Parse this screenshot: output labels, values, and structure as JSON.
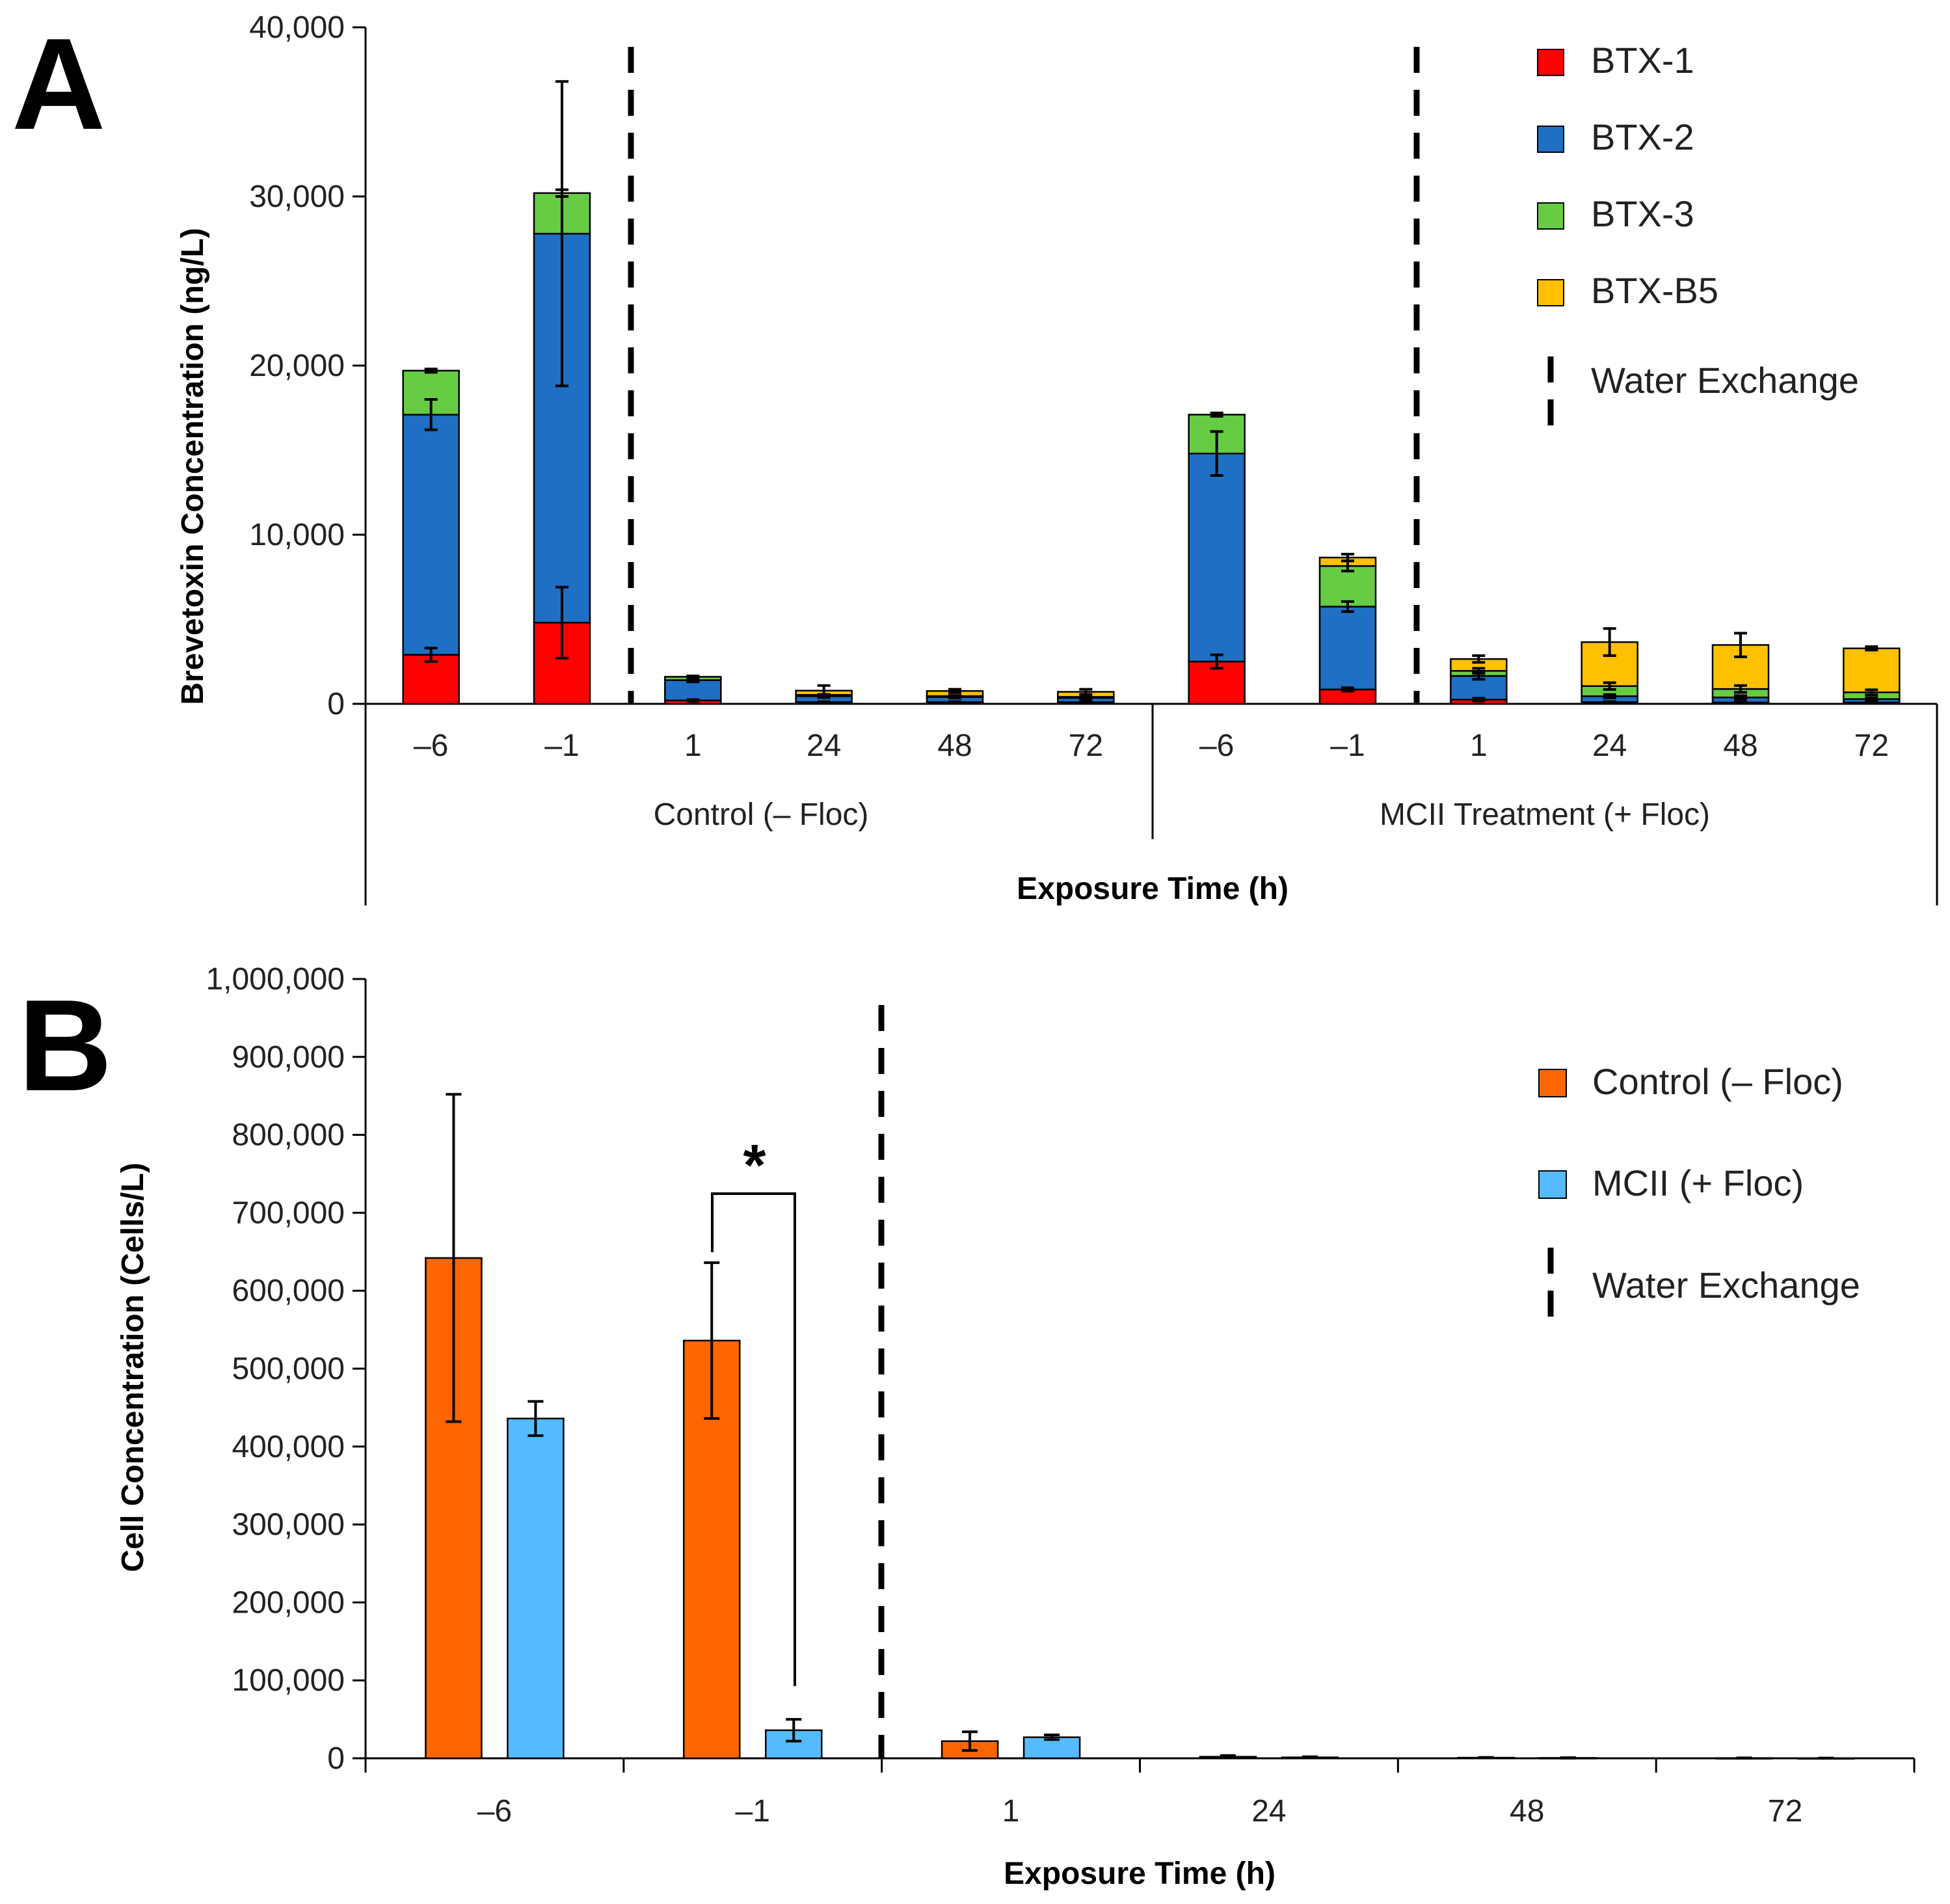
{
  "chart_data": [
    {
      "panel_label": "A",
      "type": "bar",
      "stacked": true,
      "ylabel": "Brevetoxin Concentration (ng/L)",
      "xlabel": "Exposure Time (h)",
      "ylim": [
        0,
        40000
      ],
      "yticks": [
        "0",
        "10,000",
        "20,000",
        "30,000",
        "40,000"
      ],
      "ytick_values": [
        0,
        10000,
        20000,
        30000,
        40000
      ],
      "groups": [
        {
          "label": "Control (– Floc)",
          "categories": [
            "–6",
            "–1",
            "1",
            "24",
            "48",
            "72"
          ]
        },
        {
          "label": "MCII Treatment (+ Floc)",
          "categories": [
            "–6",
            "–1",
            "1",
            "24",
            "48",
            "72"
          ]
        }
      ],
      "series": [
        {
          "name": "BTX-1",
          "color": "#ff0000",
          "values": [
            2900,
            4800,
            200,
            100,
            100,
            100,
            2500,
            850,
            250,
            100,
            80,
            80
          ],
          "errors": [
            400,
            2100,
            50,
            30,
            30,
            30,
            400,
            100,
            80,
            30,
            30,
            30
          ]
        },
        {
          "name": "BTX-2",
          "color": "#1f6fc4",
          "values": [
            14200,
            23000,
            1200,
            350,
            300,
            250,
            12300,
            4900,
            1400,
            350,
            300,
            200
          ],
          "errors": [
            900,
            9000,
            100,
            80,
            60,
            60,
            1300,
            300,
            200,
            100,
            100,
            80
          ]
        },
        {
          "name": "BTX-3",
          "color": "#66cc44",
          "values": [
            2600,
            2400,
            200,
            80,
            60,
            60,
            2300,
            2400,
            300,
            600,
            500,
            400
          ],
          "errors": [
            100,
            200,
            50,
            30,
            30,
            30,
            100,
            300,
            150,
            200,
            200,
            150
          ]
        },
        {
          "name": "BTX-B5",
          "color": "#ffc000",
          "values": [
            0,
            0,
            0,
            250,
            300,
            300,
            0,
            500,
            700,
            2600,
            2600,
            2600
          ],
          "errors": [
            0,
            0,
            0,
            300,
            100,
            150,
            0,
            200,
            200,
            800,
            700,
            100
          ]
        }
      ],
      "water_exchange_label": "Water Exchange",
      "legend_position": "top-right"
    },
    {
      "panel_label": "B",
      "type": "bar",
      "categories": [
        "–6",
        "–1",
        "1",
        "24",
        "48",
        "72"
      ],
      "ylabel": "Cell Concentration (Cells/L)",
      "xlabel": "Exposure Time (h)",
      "ylim": [
        0,
        1000000
      ],
      "yticks": [
        "0",
        "100,000",
        "200,000",
        "300,000",
        "400,000",
        "500,000",
        "600,000",
        "700,000",
        "800,000",
        "900,000",
        "1,000,000"
      ],
      "ytick_values": [
        0,
        100000,
        200000,
        300000,
        400000,
        500000,
        600000,
        700000,
        800000,
        900000,
        1000000
      ],
      "series": [
        {
          "name": "Control (– Floc)",
          "color": "#ff6600",
          "values": [
            642000,
            536000,
            22000,
            2000,
            800,
            300
          ],
          "errors": [
            210000,
            100000,
            12000,
            1500,
            400,
            200
          ]
        },
        {
          "name": "MCII (+ Floc)",
          "color": "#55bbff",
          "values": [
            436000,
            36000,
            27000,
            1200,
            500,
            200
          ],
          "errors": [
            22000,
            14000,
            3000,
            800,
            300,
            150
          ]
        }
      ],
      "significance_marker": "*",
      "water_exchange_label": "Water Exchange",
      "legend_position": "top-right"
    }
  ]
}
